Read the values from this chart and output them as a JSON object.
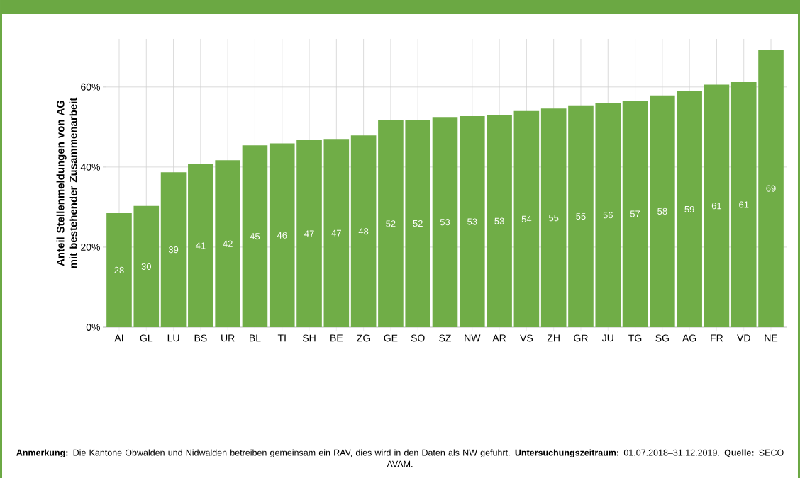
{
  "chart_data": {
    "type": "bar",
    "ylabel": "Anteil Stellenmeldungen von AG mit bestehender Zusammenarbeit",
    "categories": [
      "AI",
      "GL",
      "LU",
      "BS",
      "UR",
      "BL",
      "TI",
      "SH",
      "BE",
      "ZG",
      "GE",
      "SO",
      "SZ",
      "NW",
      "AR",
      "VS",
      "ZH",
      "GR",
      "JU",
      "TG",
      "SG",
      "AG",
      "FR",
      "VD",
      "NE"
    ],
    "values": [
      28.5,
      30.3,
      38.7,
      40.7,
      41.7,
      45.4,
      45.9,
      46.7,
      47.0,
      47.9,
      51.7,
      51.8,
      52.5,
      52.7,
      53.0,
      54.0,
      54.6,
      55.4,
      56.0,
      56.6,
      57.9,
      58.9,
      60.6,
      61.2,
      69.3
    ],
    "value_labels": [
      "28",
      "30",
      "39",
      "41",
      "42",
      "45",
      "46",
      "47",
      "47",
      "48",
      "52",
      "52",
      "53",
      "53",
      "53",
      "54",
      "55",
      "55",
      "56",
      "57",
      "58",
      "59",
      "61",
      "61",
      "69"
    ],
    "color": "#70ad47",
    "ylim": [
      0,
      72
    ],
    "yticks": [
      {
        "value": 0,
        "label": "0%"
      },
      {
        "value": 20,
        "label": "20%"
      },
      {
        "value": 40,
        "label": "40%"
      },
      {
        "value": 60,
        "label": "60%"
      }
    ],
    "grid": true,
    "annotations": [
      "**Anmerkung:** Die Kantone Obwalden und Nidwalden betreiben gemeinsam ein RAV, dies wird in den Daten als NW geführt. **Untersuchungszeitraum:** 01.07.2018–31.12.2019. **Quelle:** SECO AVAM."
    ]
  }
}
